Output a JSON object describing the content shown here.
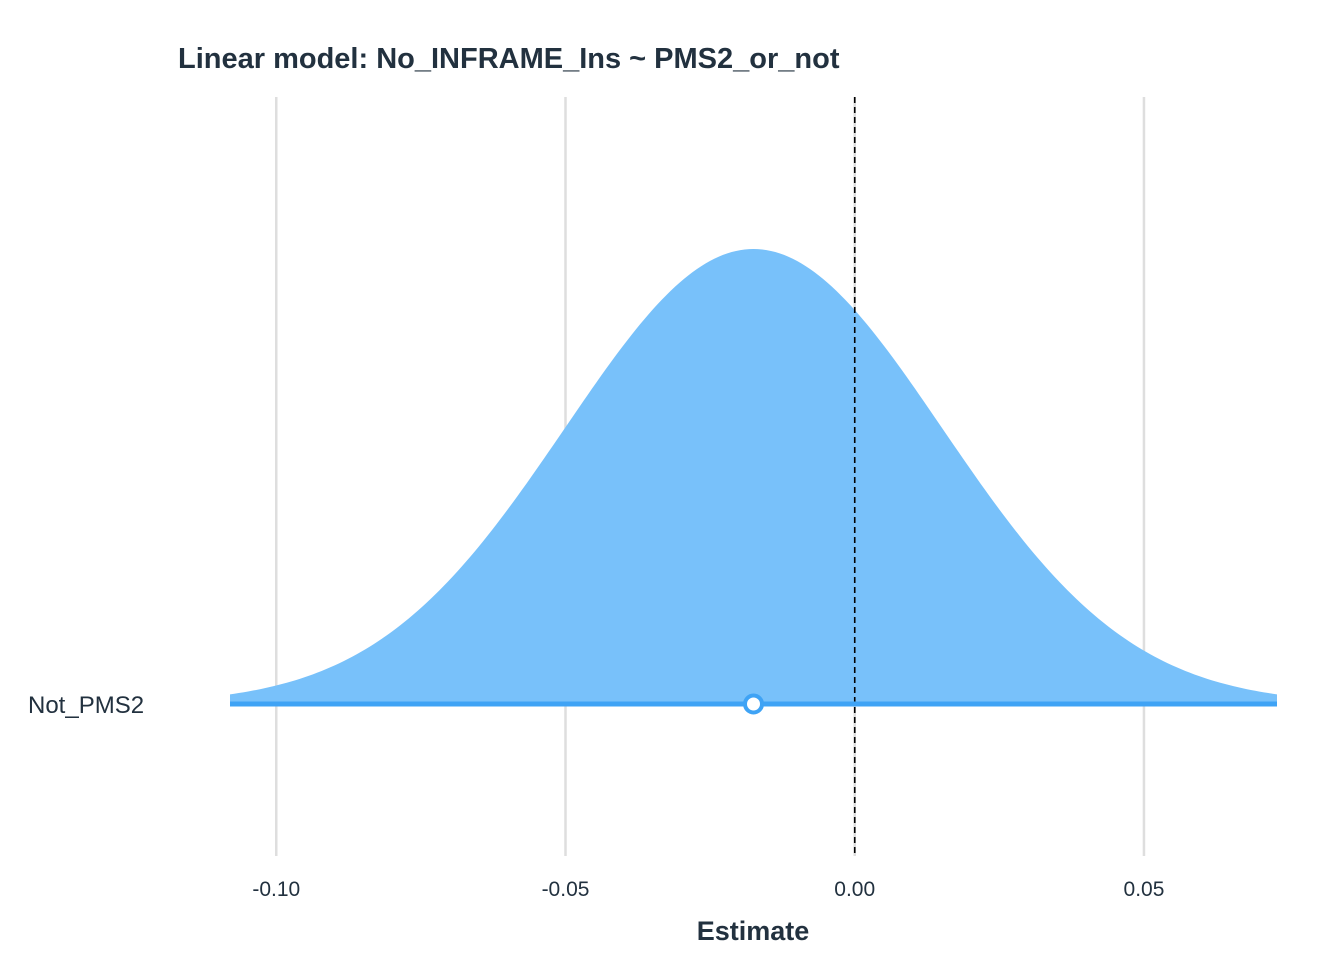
{
  "chart_data": {
    "type": "area",
    "title": "Linear model: No_INFRAME_Ins ~ PMS2_or_not",
    "xlabel": "Estimate",
    "ylabel": "",
    "xlim": [
      -0.108,
      0.073
    ],
    "x_ticks": [
      -0.1,
      -0.05,
      0.0,
      0.05
    ],
    "x_tick_labels": [
      "-0.10",
      "-0.05",
      "0.00",
      "0.05"
    ],
    "reference_line": {
      "x": 0.0,
      "style": "dashed"
    },
    "grid": "vertical",
    "categories": [
      "Not_PMS2"
    ],
    "series": [
      {
        "category": "Not_PMS2",
        "estimate": -0.0175,
        "std_error": 0.0326,
        "distribution": "normal",
        "fill_color": "#78c1fa",
        "line_color": "#3fa3f5"
      }
    ]
  },
  "colors": {
    "text": "#22313f",
    "grid": "#dedede",
    "reference_line": "#000000",
    "background": "#ffffff"
  }
}
